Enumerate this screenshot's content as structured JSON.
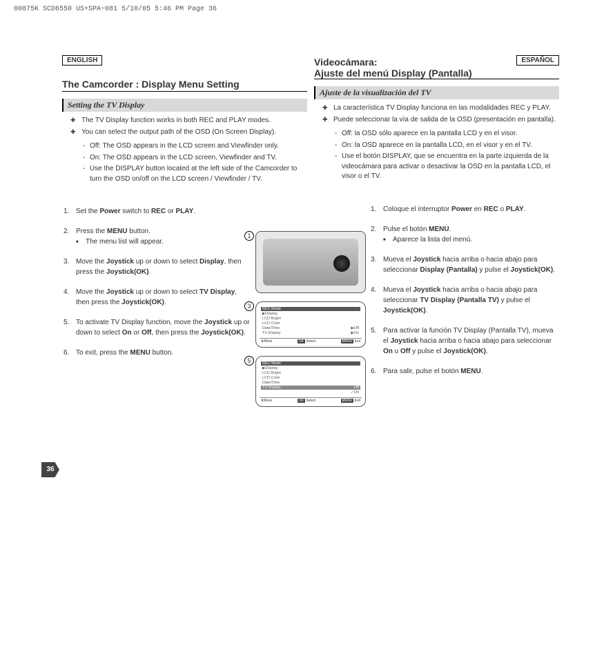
{
  "header_meta": "00875K SCD6550 US+SPA~081  5/10/05 5:46 PM  Page 36",
  "page_number": "36",
  "en": {
    "lang": "ENGLISH",
    "title": "The Camcorder : Display Menu Setting",
    "subhead": "Setting the TV Display",
    "bullets": [
      "The TV Display function works in both REC and PLAY modes.",
      "You can select the output path of the OSD (On Screen Display)."
    ],
    "dashes": [
      "Off: The OSD appears in the LCD screen and Viewfinder only.",
      "On: The OSD appears in the LCD screen, Viewfinder and TV.",
      "Use the DISPLAY button located at the left side of the Camcorder to turn the OSD on/off on the LCD screen / Viewfinder / TV."
    ],
    "steps": [
      {
        "n": "1.",
        "t": "Set the <b>Power</b> switch to <b>REC</b> or <b>PLAY</b>."
      },
      {
        "n": "2.",
        "t": "Press the <b>MENU</b> button.",
        "sub": "The menu list will appear."
      },
      {
        "n": "3.",
        "t": "Move the <b>Joystick</b> up or down to select <b>Display</b>, then press the <b>Joystick(OK)</b>."
      },
      {
        "n": "4.",
        "t": "Move the <b>Joystick</b> up or down to select <b>TV Display</b>, then press the <b>Joystick(OK)</b>."
      },
      {
        "n": "5.",
        "t": "To activate TV Display function, move the <b>Joystick</b> up or down to select <b>On</b> or <b>Off</b>, then press the <b>Joystick(OK)</b>."
      },
      {
        "n": "6.",
        "t": "To exit, press the <b>MENU</b> button."
      }
    ]
  },
  "es": {
    "lang": "ESPAÑOL",
    "title": "Videocámara:\nAjuste del menú Display (Pantalla)",
    "subhead": "Ajuste de la visualización del TV",
    "bullets": [
      "La característica TV Display funciona en las modalidades REC y PLAY.",
      "Puede seleccionar la vía de salida de la OSD (presentación en pantalla)."
    ],
    "dashes": [
      "Off: la OSD sólo aparece en la pantalla LCD y en el visor.",
      "On: la OSD aparece en la pantalla LCD, en el visor y en el TV.",
      "Use el botón DISPLAY, que se encuentra en la parte izquierda de la videocámara para activar o desactivar la OSD en la pantalla LCD, el visor o el TV."
    ],
    "steps": [
      {
        "n": "1.",
        "t": "Coloque el interruptor <b>Power</b> en <b>REC</b> o <b>PLAY</b>."
      },
      {
        "n": "2.",
        "t": "Pulse el botón <b>MENU</b>.",
        "sub": "Aparece la lista del menú."
      },
      {
        "n": "3.",
        "t": "Mueva el <b>Joystick</b> hacia arriba o hacia abajo para seleccionar <b>Display (Pantalla)</b> y pulse el <b>Joystick(OK)</b>."
      },
      {
        "n": "4.",
        "t": "Mueva el <b>Joystick</b> hacia arriba o hacia abajo para seleccionar <b>TV Display (Pantalla TV)</b> y pulse el <b>Joystick(OK)</b>."
      },
      {
        "n": "5.",
        "t": "Para activar la función TV Display (Pantalla TV), mueva el <b>Joystick</b> hacia arriba o hacia abajo para seleccionar <b>On</b> u <b>Off</b> y pulse el <b>Joystick(OK)</b>."
      },
      {
        "n": "6.",
        "t": "Para salir, pulse el botón <b>MENU</b>."
      }
    ]
  },
  "fig": {
    "num1": "1",
    "num3": "3",
    "num5": "5",
    "menu_mode": "REC Mode",
    "m_display": "▶Display",
    "m_lcdbright": "LCD Bright",
    "m_lcdcolor": "LCD Color",
    "m_datetime": "Date/Time",
    "m_tvdisplay": "TV Display",
    "opt_off": "▶Off",
    "opt_on": "▶On",
    "opt_off2": "Off",
    "opt_on2": "✓On",
    "foot_move": "Move",
    "foot_ok": "OK",
    "foot_select": "Select",
    "foot_menu": "MENU",
    "foot_exit": "Exit"
  }
}
